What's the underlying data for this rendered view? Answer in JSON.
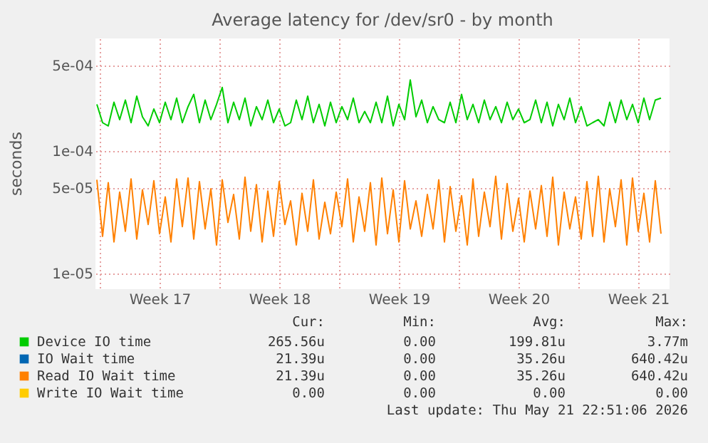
{
  "chart_data": {
    "type": "line",
    "title": "Average latency for /dev/sr0 - by month",
    "ylabel": "seconds",
    "log": "y",
    "grid": true,
    "legend": "bottom",
    "ylim": [
      7.4e-06,
      0.00083
    ],
    "yticks": [
      {
        "value": 1e-05,
        "label": "1e-05"
      },
      {
        "value": 5e-05,
        "label": "5e-05"
      },
      {
        "value": 0.0001,
        "label": "1e-04"
      },
      {
        "value": 0.0005,
        "label": "5e-04"
      }
    ],
    "xlim": [
      "2026-04-19T18:00",
      "2026-05-23T08:00"
    ],
    "xticks": [
      {
        "value": "2026-04-20",
        "label": null
      },
      {
        "value": "2026-04-23T12:00",
        "label": "Week 17"
      },
      {
        "value": "2026-04-27",
        "label": null
      },
      {
        "value": "2026-04-30T12:00",
        "label": "Week 18"
      },
      {
        "value": "2026-05-04",
        "label": null
      },
      {
        "value": "2026-05-07T12:00",
        "label": "Week 19"
      },
      {
        "value": "2026-05-11",
        "label": null
      },
      {
        "value": "2026-05-14T12:00",
        "label": "Week 20"
      },
      {
        "value": "2026-05-18",
        "label": null
      },
      {
        "value": "2026-05-21T12:00",
        "label": "Week 21"
      }
    ],
    "x": [
      "2026-04-19T20:00",
      "2026-04-20T04:00",
      "2026-04-20T12:00",
      "2026-04-20T20:00",
      "2026-04-21T04:00",
      "2026-04-21T12:00",
      "2026-04-21T20:00",
      "2026-04-22T04:00",
      "2026-04-22T12:00",
      "2026-04-22T20:00",
      "2026-04-23T04:00",
      "2026-04-23T12:00",
      "2026-04-23T20:00",
      "2026-04-24T04:00",
      "2026-04-24T12:00",
      "2026-04-24T20:00",
      "2026-04-25T04:00",
      "2026-04-25T12:00",
      "2026-04-25T20:00",
      "2026-04-26T04:00",
      "2026-04-26T12:00",
      "2026-04-26T20:00",
      "2026-04-27T04:00",
      "2026-04-27T12:00",
      "2026-04-27T20:00",
      "2026-04-28T04:00",
      "2026-04-28T12:00",
      "2026-04-28T20:00",
      "2026-04-29T04:00",
      "2026-04-29T12:00",
      "2026-04-29T20:00",
      "2026-04-30T04:00",
      "2026-04-30T12:00",
      "2026-04-30T20:00",
      "2026-05-01T04:00",
      "2026-05-01T12:00",
      "2026-05-01T20:00",
      "2026-05-02T04:00",
      "2026-05-02T12:00",
      "2026-05-02T20:00",
      "2026-05-03T04:00",
      "2026-05-03T12:00",
      "2026-05-03T20:00",
      "2026-05-04T04:00",
      "2026-05-04T12:00",
      "2026-05-04T20:00",
      "2026-05-05T04:00",
      "2026-05-05T12:00",
      "2026-05-05T20:00",
      "2026-05-06T04:00",
      "2026-05-06T12:00",
      "2026-05-06T20:00",
      "2026-05-07T04:00",
      "2026-05-07T12:00",
      "2026-05-07T20:00",
      "2026-05-08T04:00",
      "2026-05-08T12:00",
      "2026-05-08T20:00",
      "2026-05-09T04:00",
      "2026-05-09T12:00",
      "2026-05-09T20:00",
      "2026-05-10T04:00",
      "2026-05-10T12:00",
      "2026-05-10T20:00",
      "2026-05-11T04:00",
      "2026-05-11T12:00",
      "2026-05-11T20:00",
      "2026-05-12T04:00",
      "2026-05-12T12:00",
      "2026-05-12T20:00",
      "2026-05-13T04:00",
      "2026-05-13T12:00",
      "2026-05-13T20:00",
      "2026-05-14T04:00",
      "2026-05-14T12:00",
      "2026-05-14T20:00",
      "2026-05-15T04:00",
      "2026-05-15T12:00",
      "2026-05-15T20:00",
      "2026-05-16T04:00",
      "2026-05-16T12:00",
      "2026-05-16T20:00",
      "2026-05-17T04:00",
      "2026-05-17T12:00",
      "2026-05-17T20:00",
      "2026-05-18T04:00",
      "2026-05-18T12:00",
      "2026-05-18T20:00",
      "2026-05-19T04:00",
      "2026-05-19T12:00",
      "2026-05-19T20:00",
      "2026-05-20T04:00",
      "2026-05-20T12:00",
      "2026-05-20T20:00",
      "2026-05-21T04:00",
      "2026-05-21T12:00",
      "2026-05-21T20:00",
      "2026-05-22T04:00",
      "2026-05-22T12:00",
      "2026-05-22T20:00"
    ],
    "series": [
      {
        "name": "Device IO time",
        "color": "#00cc00",
        "values": [
          0.00024,
          0.00017,
          0.00016,
          0.00025,
          0.00018,
          0.00026,
          0.00017,
          0.00028,
          0.00019,
          0.00016,
          0.00022,
          0.00017,
          0.00025,
          0.00018,
          0.00027,
          0.00017,
          0.00023,
          0.00029,
          0.00017,
          0.00026,
          0.00018,
          0.00024,
          0.00033,
          0.00017,
          0.00025,
          0.00018,
          0.00027,
          0.00016,
          0.00023,
          0.00018,
          0.00026,
          0.00017,
          0.00022,
          0.00016,
          0.00017,
          0.00026,
          0.00018,
          0.00028,
          0.00017,
          0.00024,
          0.00016,
          0.00025,
          0.00017,
          0.00023,
          0.00018,
          0.00027,
          0.00017,
          0.00021,
          0.00017,
          0.00025,
          0.00017,
          0.00028,
          0.00016,
          0.00024,
          0.00018,
          0.00038,
          0.00019,
          0.00026,
          0.00017,
          0.00023,
          0.00018,
          0.00017,
          0.00025,
          0.00017,
          0.00029,
          0.00018,
          0.00024,
          0.00017,
          0.00026,
          0.00018,
          0.00023,
          0.00017,
          0.00025,
          0.00018,
          0.00022,
          0.00017,
          0.00018,
          0.00026,
          0.00017,
          0.00025,
          0.00016,
          0.00024,
          0.00018,
          0.00027,
          0.00017,
          0.00023,
          0.00016,
          0.00017,
          0.00018,
          0.00016,
          0.00025,
          0.00017,
          0.00026,
          0.00018,
          0.00024,
          0.00017,
          0.00027,
          0.00018,
          0.00026,
          0.00027
        ]
      },
      {
        "name": "IO Wait time",
        "color": "#0066b3",
        "values": [
          null,
          null,
          null,
          null,
          null,
          null,
          null,
          null,
          null,
          null,
          null,
          null,
          null,
          null,
          null,
          null,
          null,
          null,
          null,
          null,
          null,
          null,
          null,
          null,
          null,
          null,
          null,
          null,
          null,
          null,
          null,
          null,
          null,
          null,
          null,
          null,
          null,
          null,
          null,
          null,
          null,
          null,
          null,
          null,
          null,
          null,
          null,
          null,
          null,
          null,
          null,
          null,
          null,
          null,
          null,
          null,
          null,
          null,
          null,
          null,
          null,
          null,
          null,
          null,
          null,
          null,
          null,
          null,
          null,
          null,
          null,
          null,
          null,
          null,
          null,
          null,
          null,
          null,
          null,
          null,
          null,
          null,
          null,
          null,
          null,
          null,
          null,
          null,
          null,
          null,
          null,
          null,
          null,
          null,
          null,
          null,
          null,
          null,
          null,
          null
        ]
      },
      {
        "name": "Read IO Wait time",
        "color": "#ff8000",
        "values": [
          5.8e-05,
          2e-05,
          5.5e-05,
          1.8e-05,
          4.6e-05,
          2.2e-05,
          5.9e-05,
          1.9e-05,
          4.8e-05,
          2.5e-05,
          5.7e-05,
          2.1e-05,
          4.2e-05,
          1.8e-05,
          5.9e-05,
          2.4e-05,
          6e-05,
          1.9e-05,
          5.6e-05,
          2.3e-05,
          4.9e-05,
          1.7e-05,
          5.8e-05,
          2.6e-05,
          4.4e-05,
          1.9e-05,
          6.1e-05,
          2.2e-05,
          5.3e-05,
          1.8e-05,
          4.7e-05,
          2e-05,
          5.6e-05,
          2.5e-05,
          3.9e-05,
          1.7e-05,
          4.5e-05,
          2.2e-05,
          5.8e-05,
          1.9e-05,
          3.8e-05,
          2.1e-05,
          4.6e-05,
          2.4e-05,
          5.9e-05,
          1.8e-05,
          4.2e-05,
          2.2e-05,
          5.5e-05,
          1.7e-05,
          6e-05,
          2.1e-05,
          4.8e-05,
          1.8e-05,
          5.7e-05,
          2.3e-05,
          3.9e-05,
          2e-05,
          4.4e-05,
          2.3e-05,
          5.8e-05,
          1.8e-05,
          5.1e-05,
          2.2e-05,
          4.3e-05,
          1.7e-05,
          5.9e-05,
          2e-05,
          4.6e-05,
          2.4e-05,
          6.2e-05,
          1.9e-05,
          5.4e-05,
          2.2e-05,
          4.1e-05,
          1.8e-05,
          4.7e-05,
          2.3e-05,
          5.2e-05,
          2e-05,
          6.1e-05,
          1.7e-05,
          4.6e-05,
          2.3e-05,
          4.2e-05,
          1.9e-05,
          5.6e-05,
          2e-05,
          6.2e-05,
          1.8e-05,
          4.9e-05,
          2.4e-05,
          5.8e-05,
          1.7e-05,
          6e-05,
          2.2e-05,
          4.5e-05,
          1.8e-05,
          5.7e-05,
          2.1e-05
        ]
      },
      {
        "name": "Write IO Wait time",
        "color": "#ffcc00",
        "values": [
          null,
          null,
          null,
          null,
          null,
          null,
          null,
          null,
          null,
          null,
          null,
          null,
          null,
          null,
          null,
          null,
          null,
          null,
          null,
          null,
          null,
          null,
          null,
          null,
          null,
          null,
          null,
          null,
          null,
          null,
          null,
          null,
          null,
          null,
          null,
          null,
          null,
          null,
          null,
          null,
          null,
          null,
          null,
          null,
          null,
          null,
          null,
          null,
          null,
          null,
          null,
          null,
          null,
          null,
          null,
          null,
          null,
          null,
          null,
          null,
          null,
          null,
          null,
          null,
          null,
          null,
          null,
          null,
          null,
          null,
          null,
          null,
          null,
          null,
          null,
          null,
          null,
          null,
          null,
          null,
          null,
          null,
          null,
          null,
          null,
          null,
          null,
          null,
          null,
          null,
          null,
          null,
          null,
          null,
          null,
          null,
          null,
          null,
          null,
          null
        ]
      }
    ],
    "annotations": [
      "Cur:",
      "Min:",
      "Avg:",
      "Max:",
      "265.56u",
      "0.00",
      "199.81u",
      "3.77m",
      "21.39u",
      "0.00",
      "35.26u",
      "640.42u",
      "21.39u",
      "0.00",
      "35.26u",
      "640.42u",
      "0.00",
      "0.00",
      "0.00",
      "0.00",
      "Last update: Thu May 21 22:51:06 2026"
    ]
  }
}
